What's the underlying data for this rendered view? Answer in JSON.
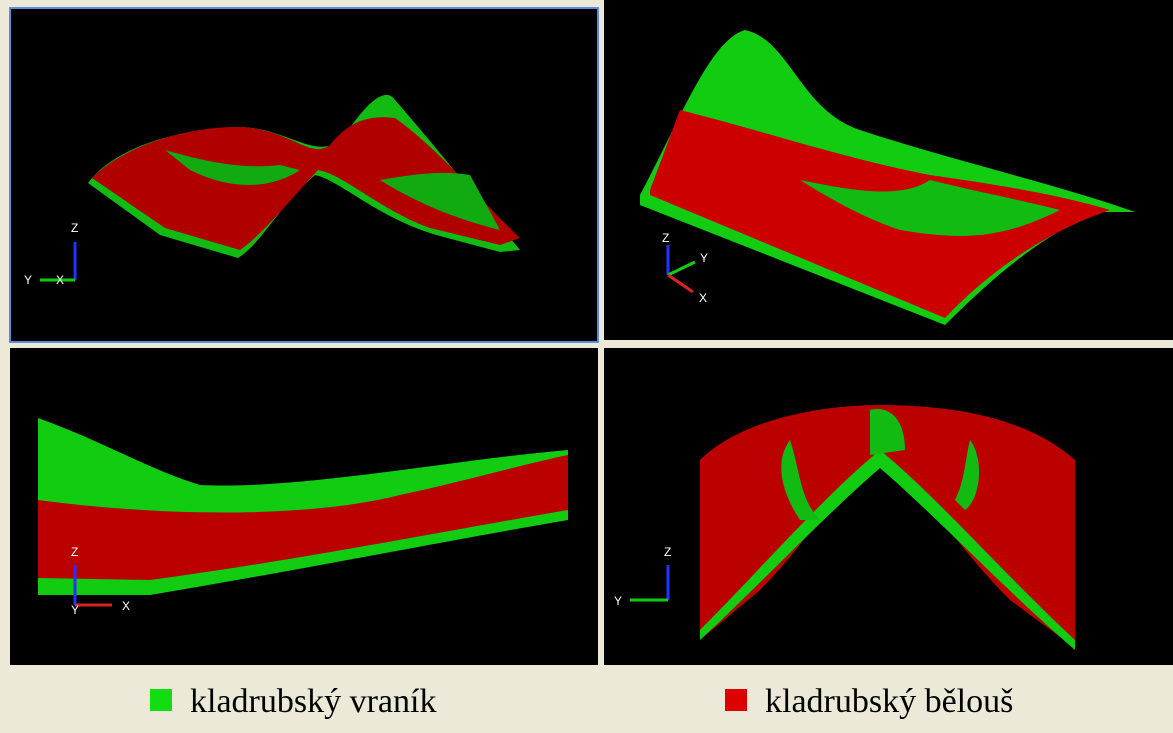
{
  "viewports": [
    {
      "axes": [
        "Z",
        "Y",
        "X"
      ]
    },
    {
      "axes": [
        "Z",
        "Y",
        "X"
      ]
    },
    {
      "axes": [
        "Z",
        "Y",
        "X"
      ]
    },
    {
      "axes": [
        "Z",
        "Y"
      ]
    }
  ],
  "legend": [
    {
      "label": "kladrubský vraník",
      "color": "#11dd11"
    },
    {
      "label": "kladrubský bělouš",
      "color": "#dd0000"
    }
  ]
}
